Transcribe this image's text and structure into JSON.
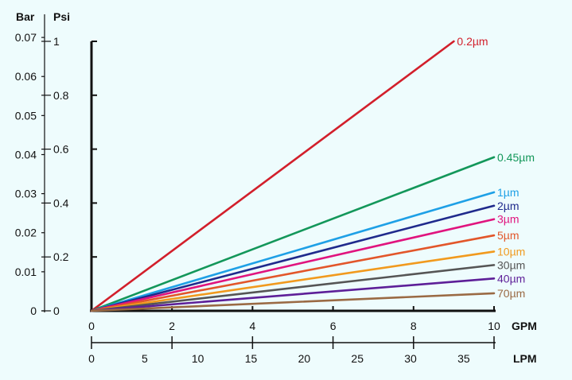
{
  "chart_data": {
    "type": "line",
    "title": "",
    "x_primary": {
      "unit": "GPM",
      "range": [
        0,
        10
      ],
      "ticks": [
        0,
        2,
        4,
        6,
        8,
        10
      ]
    },
    "x_secondary": {
      "unit": "LPM",
      "range": [
        0,
        37.85
      ],
      "ticks": [
        0,
        5,
        10,
        15,
        20,
        25,
        30,
        35
      ]
    },
    "y_primary": {
      "unit": "Psi",
      "range": [
        0,
        1
      ],
      "ticks": [
        "0",
        "0.2",
        "0.4",
        "0.6",
        "0.8",
        "1"
      ]
    },
    "y_secondary": {
      "unit": "Bar",
      "range": [
        0,
        0.069
      ],
      "ticks": [
        "0",
        "0.01",
        "0.02",
        "0.03",
        "0.04",
        "0.05",
        "0.06",
        "0.07"
      ]
    },
    "grid": false,
    "series": [
      {
        "name": "0.2µm",
        "color": "#d21f2b",
        "x": [
          0,
          9
        ],
        "y": [
          0,
          1.0
        ]
      },
      {
        "name": "0.45µm",
        "color": "#13975a",
        "x": [
          0,
          10
        ],
        "y": [
          0,
          0.57
        ]
      },
      {
        "name": "1µm",
        "color": "#1ea0e6",
        "x": [
          0,
          10
        ],
        "y": [
          0,
          0.44
        ]
      },
      {
        "name": "2µm",
        "color": "#1f2a8c",
        "x": [
          0,
          10
        ],
        "y": [
          0,
          0.39
        ]
      },
      {
        "name": "3µm",
        "color": "#e0147e",
        "x": [
          0,
          10
        ],
        "y": [
          0,
          0.34
        ]
      },
      {
        "name": "5µm",
        "color": "#e2562a",
        "x": [
          0,
          10
        ],
        "y": [
          0,
          0.28
        ]
      },
      {
        "name": "10µm",
        "color": "#f19a1e",
        "x": [
          0,
          10
        ],
        "y": [
          0,
          0.22
        ]
      },
      {
        "name": "30µm",
        "color": "#555555",
        "x": [
          0,
          10
        ],
        "y": [
          0,
          0.17
        ]
      },
      {
        "name": "40µm",
        "color": "#5d1f98",
        "x": [
          0,
          10
        ],
        "y": [
          0,
          0.12
        ]
      },
      {
        "name": "70µm",
        "color": "#9a6a44",
        "x": [
          0,
          10
        ],
        "y": [
          0,
          0.065
        ]
      }
    ]
  }
}
